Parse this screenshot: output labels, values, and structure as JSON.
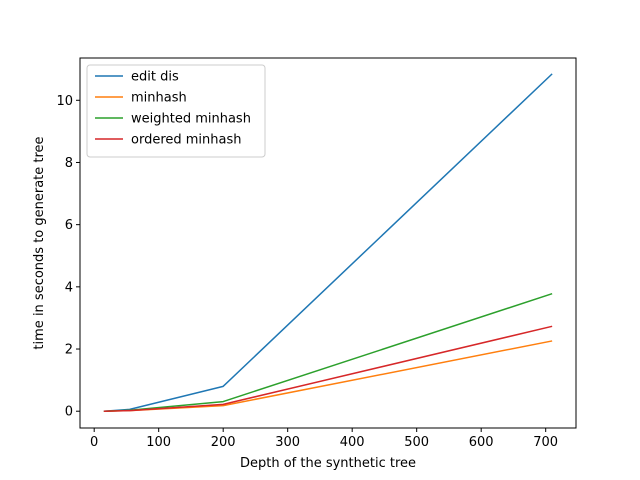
{
  "chart_data": {
    "type": "line",
    "xlabel": "Depth of the synthetic tree",
    "ylabel": "time in seconds to generate tree",
    "xlim": [
      -22,
      747
    ],
    "ylim": [
      -0.54,
      11.36
    ],
    "xticks": [
      0,
      100,
      200,
      300,
      400,
      500,
      600,
      700
    ],
    "yticks": [
      0,
      2,
      4,
      6,
      8,
      10
    ],
    "grid": false,
    "legend_position": "upper-left",
    "series": [
      {
        "name": "edit dis",
        "color": "#1f77b4",
        "x": [
          15,
          55,
          200,
          710
        ],
        "y": [
          0.0,
          0.06,
          0.8,
          10.85
        ]
      },
      {
        "name": "minhash",
        "color": "#ff7f0e",
        "x": [
          15,
          55,
          200,
          710
        ],
        "y": [
          0.0,
          0.02,
          0.18,
          2.26
        ]
      },
      {
        "name": "weighted minhash",
        "color": "#2ca02c",
        "x": [
          15,
          55,
          200,
          710
        ],
        "y": [
          0.0,
          0.03,
          0.31,
          3.78
        ]
      },
      {
        "name": "ordered minhash",
        "color": "#d62728",
        "x": [
          15,
          55,
          200,
          710
        ],
        "y": [
          0.0,
          0.02,
          0.22,
          2.73
        ]
      }
    ]
  }
}
